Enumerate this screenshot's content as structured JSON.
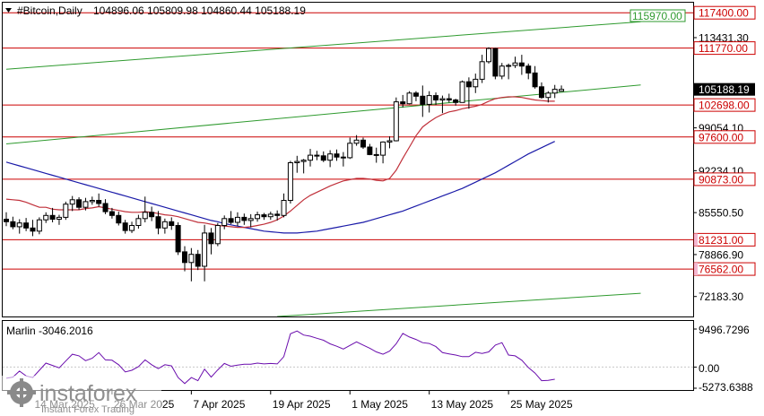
{
  "header": {
    "symbol": "#Bitcoin,Daily",
    "ohlc": "104896.06 105809.98 104860.44 105188.19",
    "marker_icon": "triangle-down-icon"
  },
  "indicator": {
    "label": "Marlin -3046.2016",
    "axis_ticks": [
      "9496.7296",
      "0.00",
      "-5273.6388"
    ]
  },
  "watermark": {
    "brand": "instaforex",
    "tagline": "Instant Forex Trading"
  },
  "colors": {
    "background": "#ffffff",
    "candle": "#000000",
    "level_line": "#cc0000",
    "channel_line": "#2e9a2e",
    "ma_fast": "#c0303a",
    "ma_slow": "#1a1aa8",
    "indicator_line": "#6a0dad",
    "current_price_label_bg": "#000000"
  },
  "chart_data": {
    "type": "candlestick",
    "price_axis": {
      "ylim": [
        69000,
        119000
      ],
      "tick_labels": [
        "117400.00",
        "113431.30",
        "111770.00",
        "105188.19",
        "102698.00",
        "99054.10",
        "97600.00",
        "92234.10",
        "90873.00",
        "85550.50",
        "81231.00",
        "78866.90",
        "76562.00",
        "72183.30"
      ]
    },
    "time_axis": {
      "tick_labels": [
        "14 Mar 2025",
        "26 Mar 2025",
        "7 Apr 2025",
        "19 Apr 2025",
        "1 May 2025",
        "13 May 2025",
        "25 May 2025"
      ]
    },
    "levels": [
      {
        "label": "117400.00",
        "value": 117400,
        "color": "#cc0000"
      },
      {
        "label": "111770.00",
        "value": 111770,
        "color": "#cc0000"
      },
      {
        "label": "102698.00",
        "value": 102698,
        "color": "#cc0000"
      },
      {
        "label": "97600.00",
        "value": 97600,
        "color": "#cc0000"
      },
      {
        "label": "90873.00",
        "value": 90873,
        "color": "#cc0000"
      },
      {
        "label": "81231.00",
        "value": 81231,
        "color": "#cc0000"
      },
      {
        "label": "76562.00",
        "value": 76562,
        "color": "#cc0000"
      }
    ],
    "channel_label": "115970.00",
    "current_price": "105188.19",
    "candles": [
      {
        "date": "2025-03-10",
        "o": 84500,
        "h": 85600,
        "l": 83400,
        "c": 84100
      },
      {
        "date": "2025-03-11",
        "o": 84100,
        "h": 84900,
        "l": 82900,
        "c": 83300
      },
      {
        "date": "2025-03-12",
        "o": 83300,
        "h": 84500,
        "l": 82200,
        "c": 83900
      },
      {
        "date": "2025-03-13",
        "o": 83900,
        "h": 84700,
        "l": 82600,
        "c": 83100
      },
      {
        "date": "2025-03-14",
        "o": 83100,
        "h": 84400,
        "l": 81800,
        "c": 82600
      },
      {
        "date": "2025-03-15",
        "o": 82600,
        "h": 84800,
        "l": 82100,
        "c": 84400
      },
      {
        "date": "2025-03-16",
        "o": 84400,
        "h": 85600,
        "l": 83900,
        "c": 85100
      },
      {
        "date": "2025-03-17",
        "o": 85100,
        "h": 86300,
        "l": 84000,
        "c": 84500
      },
      {
        "date": "2025-03-18",
        "o": 84500,
        "h": 85200,
        "l": 83600,
        "c": 84800
      },
      {
        "date": "2025-03-19",
        "o": 84800,
        "h": 87300,
        "l": 84400,
        "c": 86900
      },
      {
        "date": "2025-03-20",
        "o": 86900,
        "h": 88200,
        "l": 85800,
        "c": 87600
      },
      {
        "date": "2025-03-21",
        "o": 87600,
        "h": 88000,
        "l": 86000,
        "c": 86400
      },
      {
        "date": "2025-03-22",
        "o": 86400,
        "h": 87900,
        "l": 85900,
        "c": 87300
      },
      {
        "date": "2025-03-23",
        "o": 87300,
        "h": 88100,
        "l": 86800,
        "c": 87500
      },
      {
        "date": "2025-03-24",
        "o": 87500,
        "h": 88600,
        "l": 86500,
        "c": 87000
      },
      {
        "date": "2025-03-25",
        "o": 87000,
        "h": 87700,
        "l": 85300,
        "c": 85700
      },
      {
        "date": "2025-03-26",
        "o": 85700,
        "h": 86300,
        "l": 84600,
        "c": 85100
      },
      {
        "date": "2025-03-27",
        "o": 85100,
        "h": 85700,
        "l": 83500,
        "c": 83900
      },
      {
        "date": "2025-03-28",
        "o": 83900,
        "h": 84400,
        "l": 82200,
        "c": 82700
      },
      {
        "date": "2025-03-29",
        "o": 82700,
        "h": 84100,
        "l": 82300,
        "c": 83500
      },
      {
        "date": "2025-03-30",
        "o": 83500,
        "h": 85200,
        "l": 83000,
        "c": 84600
      },
      {
        "date": "2025-03-31",
        "o": 84600,
        "h": 88100,
        "l": 84000,
        "c": 85600
      },
      {
        "date": "2025-04-01",
        "o": 85600,
        "h": 86500,
        "l": 84200,
        "c": 84900
      },
      {
        "date": "2025-04-02",
        "o": 84900,
        "h": 85800,
        "l": 82100,
        "c": 83100
      },
      {
        "date": "2025-04-03",
        "o": 83100,
        "h": 84600,
        "l": 82200,
        "c": 84100
      },
      {
        "date": "2025-04-04",
        "o": 84100,
        "h": 84800,
        "l": 82800,
        "c": 83500
      },
      {
        "date": "2025-04-05",
        "o": 83500,
        "h": 84000,
        "l": 78800,
        "c": 79300
      },
      {
        "date": "2025-04-06",
        "o": 79300,
        "h": 80200,
        "l": 76200,
        "c": 77600
      },
      {
        "date": "2025-04-07",
        "o": 77600,
        "h": 79900,
        "l": 74600,
        "c": 78900
      },
      {
        "date": "2025-04-08",
        "o": 78900,
        "h": 79600,
        "l": 76400,
        "c": 77000
      },
      {
        "date": "2025-04-09",
        "o": 77000,
        "h": 83600,
        "l": 74600,
        "c": 82300
      },
      {
        "date": "2025-04-10",
        "o": 82300,
        "h": 83100,
        "l": 78900,
        "c": 80600
      },
      {
        "date": "2025-04-11",
        "o": 80600,
        "h": 83900,
        "l": 80200,
        "c": 83500
      },
      {
        "date": "2025-04-12",
        "o": 83500,
        "h": 85100,
        "l": 82900,
        "c": 84600
      },
      {
        "date": "2025-04-13",
        "o": 84600,
        "h": 85800,
        "l": 83700,
        "c": 84000
      },
      {
        "date": "2025-04-14",
        "o": 84000,
        "h": 85600,
        "l": 83400,
        "c": 84800
      },
      {
        "date": "2025-04-15",
        "o": 84800,
        "h": 85400,
        "l": 83600,
        "c": 84300
      },
      {
        "date": "2025-04-16",
        "o": 84300,
        "h": 85300,
        "l": 83200,
        "c": 84600
      },
      {
        "date": "2025-04-17",
        "o": 84600,
        "h": 85700,
        "l": 84100,
        "c": 85200
      },
      {
        "date": "2025-04-18",
        "o": 85200,
        "h": 85500,
        "l": 84400,
        "c": 84900
      },
      {
        "date": "2025-04-19",
        "o": 84900,
        "h": 85700,
        "l": 84400,
        "c": 85300
      },
      {
        "date": "2025-04-20",
        "o": 85300,
        "h": 85900,
        "l": 84300,
        "c": 85100
      },
      {
        "date": "2025-04-21",
        "o": 85100,
        "h": 88600,
        "l": 84800,
        "c": 87500
      },
      {
        "date": "2025-04-22",
        "o": 87500,
        "h": 93800,
        "l": 87000,
        "c": 93500
      },
      {
        "date": "2025-04-23",
        "o": 93500,
        "h": 94600,
        "l": 91900,
        "c": 93700
      },
      {
        "date": "2025-04-24",
        "o": 93700,
        "h": 94100,
        "l": 91800,
        "c": 93900
      },
      {
        "date": "2025-04-25",
        "o": 93900,
        "h": 95700,
        "l": 92900,
        "c": 94700
      },
      {
        "date": "2025-04-26",
        "o": 94700,
        "h": 95400,
        "l": 93900,
        "c": 94600
      },
      {
        "date": "2025-04-27",
        "o": 94600,
        "h": 95300,
        "l": 93600,
        "c": 93900
      },
      {
        "date": "2025-04-28",
        "o": 93900,
        "h": 95500,
        "l": 92800,
        "c": 94900
      },
      {
        "date": "2025-04-29",
        "o": 94900,
        "h": 95600,
        "l": 93800,
        "c": 94400
      },
      {
        "date": "2025-04-30",
        "o": 94400,
        "h": 95200,
        "l": 92900,
        "c": 94300
      },
      {
        "date": "2025-05-01",
        "o": 94300,
        "h": 97500,
        "l": 94100,
        "c": 96600
      },
      {
        "date": "2025-05-02",
        "o": 96600,
        "h": 97900,
        "l": 96200,
        "c": 97100
      },
      {
        "date": "2025-05-03",
        "o": 97100,
        "h": 97500,
        "l": 95700,
        "c": 96000
      },
      {
        "date": "2025-05-04",
        "o": 96000,
        "h": 96500,
        "l": 94700,
        "c": 94800
      },
      {
        "date": "2025-05-05",
        "o": 94800,
        "h": 95900,
        "l": 93500,
        "c": 94700
      },
      {
        "date": "2025-05-06",
        "o": 94700,
        "h": 96900,
        "l": 93400,
        "c": 96800
      },
      {
        "date": "2025-05-07",
        "o": 96800,
        "h": 97700,
        "l": 95800,
        "c": 97000
      },
      {
        "date": "2025-05-08",
        "o": 97000,
        "h": 103900,
        "l": 96900,
        "c": 103200
      },
      {
        "date": "2025-05-09",
        "o": 103200,
        "h": 104300,
        "l": 102300,
        "c": 102900
      },
      {
        "date": "2025-05-10",
        "o": 102900,
        "h": 104900,
        "l": 102800,
        "c": 104600
      },
      {
        "date": "2025-05-11",
        "o": 104600,
        "h": 104900,
        "l": 103300,
        "c": 104100
      },
      {
        "date": "2025-05-12",
        "o": 104100,
        "h": 105800,
        "l": 100800,
        "c": 102800
      },
      {
        "date": "2025-05-13",
        "o": 102800,
        "h": 104900,
        "l": 101500,
        "c": 104200
      },
      {
        "date": "2025-05-14",
        "o": 104200,
        "h": 104700,
        "l": 102700,
        "c": 103500
      },
      {
        "date": "2025-05-15",
        "o": 103500,
        "h": 104200,
        "l": 101400,
        "c": 103700
      },
      {
        "date": "2025-05-16",
        "o": 103700,
        "h": 104500,
        "l": 103100,
        "c": 103500
      },
      {
        "date": "2025-05-17",
        "o": 103500,
        "h": 103700,
        "l": 102600,
        "c": 103100
      },
      {
        "date": "2025-05-18",
        "o": 103100,
        "h": 106600,
        "l": 103100,
        "c": 106400
      },
      {
        "date": "2025-05-19",
        "o": 106400,
        "h": 107100,
        "l": 102100,
        "c": 105600
      },
      {
        "date": "2025-05-20",
        "o": 105600,
        "h": 107700,
        "l": 104600,
        "c": 106800
      },
      {
        "date": "2025-05-21",
        "o": 106800,
        "h": 110700,
        "l": 106200,
        "c": 109600
      },
      {
        "date": "2025-05-22",
        "o": 109600,
        "h": 111900,
        "l": 109300,
        "c": 111700
      },
      {
        "date": "2025-05-23",
        "o": 111700,
        "h": 111800,
        "l": 106800,
        "c": 107300
      },
      {
        "date": "2025-05-24",
        "o": 107300,
        "h": 109400,
        "l": 106800,
        "c": 108900
      },
      {
        "date": "2025-05-25",
        "o": 108900,
        "h": 109300,
        "l": 106800,
        "c": 109000
      },
      {
        "date": "2025-05-26",
        "o": 109000,
        "h": 110400,
        "l": 108600,
        "c": 109400
      },
      {
        "date": "2025-05-27",
        "o": 109400,
        "h": 110700,
        "l": 107500,
        "c": 108900
      },
      {
        "date": "2025-05-28",
        "o": 108900,
        "h": 109300,
        "l": 106800,
        "c": 107800
      },
      {
        "date": "2025-05-29",
        "o": 107800,
        "h": 108900,
        "l": 105300,
        "c": 105600
      },
      {
        "date": "2025-05-30",
        "o": 105600,
        "h": 106300,
        "l": 103700,
        "c": 103900
      },
      {
        "date": "2025-05-31",
        "o": 103900,
        "h": 104900,
        "l": 103100,
        "c": 104600
      },
      {
        "date": "2025-06-01",
        "o": 104600,
        "h": 105900,
        "l": 103800,
        "c": 105200
      },
      {
        "date": "2025-06-02",
        "o": 104896.06,
        "h": 105809.98,
        "l": 104860.44,
        "c": 105188.19
      }
    ],
    "ma_fast": [
      87700,
      87600,
      87500,
      87200,
      86800,
      86400,
      86400,
      86100,
      86000,
      86000,
      86000,
      86000,
      86200,
      86300,
      86500,
      86300,
      86100,
      85900,
      85700,
      85600,
      85600,
      85700,
      85600,
      85400,
      85200,
      85100,
      84900,
      84600,
      84300,
      84000,
      83900,
      83700,
      83500,
      83400,
      83300,
      83200,
      83200,
      83300,
      83500,
      83700,
      84000,
      84400,
      85000,
      85800,
      86700,
      87600,
      88300,
      88800,
      89300,
      89800,
      90200,
      90600,
      90800,
      91000,
      91000,
      90900,
      90700,
      90600,
      91000,
      92300,
      94200,
      96000,
      97800,
      99200,
      100000,
      100700,
      101200,
      101600,
      101800,
      102100,
      102300,
      102500,
      102800,
      103300,
      103700,
      103900,
      104000,
      104000,
      103900,
      103700,
      103500,
      103400,
      103300,
      103300
    ],
    "ma_slow": [
      93600,
      93300,
      93000,
      92700,
      92400,
      92100,
      91800,
      91500,
      91200,
      90900,
      90600,
      90300,
      90000,
      89700,
      89400,
      89100,
      88800,
      88500,
      88200,
      87900,
      87600,
      87300,
      87000,
      86700,
      86400,
      86100,
      85800,
      85500,
      85200,
      84900,
      84600,
      84300,
      84100,
      83800,
      83600,
      83400,
      83200,
      83000,
      82800,
      82600,
      82500,
      82400,
      82300,
      82300,
      82300,
      82400,
      82500,
      82600,
      82800,
      83000,
      83200,
      83400,
      83600,
      83800,
      84000,
      84300,
      84600,
      84900,
      85200,
      85500,
      85800,
      86200,
      86600,
      87000,
      87400,
      87800,
      88200,
      88600,
      89000,
      89400,
      89900,
      90400,
      90900,
      91400,
      91900,
      92500,
      93100,
      93700,
      94300,
      94900,
      95400,
      95900,
      96400,
      96900
    ],
    "channel_upper": [
      {
        "date": "2025-03-10",
        "value": 108400
      },
      {
        "date": "2025-06-14",
        "value": 115970
      }
    ],
    "channel_middle": [
      {
        "date": "2025-03-10",
        "value": 96500
      },
      {
        "date": "2025-06-14",
        "value": 105900
      }
    ],
    "channel_lower": [
      {
        "date": "2025-04-20",
        "value": 69000
      },
      {
        "date": "2025-06-14",
        "value": 72700
      }
    ],
    "indicator_series": {
      "name": "Marlin",
      "values": [
        -2800,
        -2500,
        -1000,
        -2200,
        -2600,
        -800,
        1000,
        400,
        -200,
        1500,
        3200,
        2800,
        1600,
        2200,
        3600,
        1800,
        1700,
        600,
        -1200,
        -800,
        100,
        1800,
        600,
        -400,
        600,
        300,
        -2600,
        -4100,
        -2600,
        -3400,
        -500,
        -2500,
        -700,
        900,
        200,
        500,
        700,
        700,
        1000,
        800,
        900,
        800,
        2600,
        8300,
        9000,
        8000,
        7700,
        7200,
        6700,
        5800,
        5200,
        4500,
        5400,
        6300,
        5500,
        4700,
        3800,
        3200,
        4000,
        5800,
        8400,
        7500,
        6900,
        6100,
        5900,
        5100,
        3600,
        3300,
        3000,
        2600,
        2600,
        3700,
        3400,
        3800,
        5500,
        6100,
        3000,
        2800,
        1700,
        -100,
        -1500,
        -3400,
        -3300,
        -3046.2016
      ]
    }
  }
}
